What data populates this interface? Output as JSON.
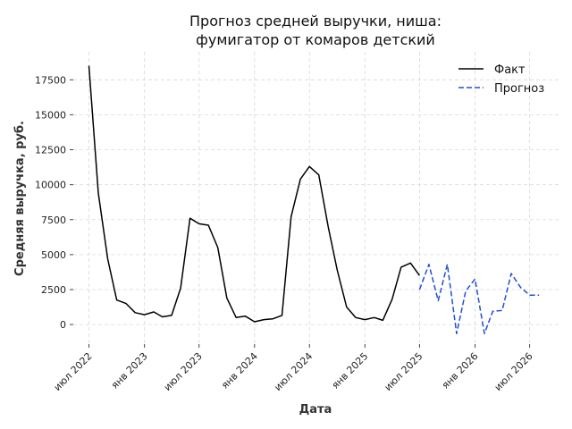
{
  "chart_data": {
    "type": "line",
    "title_line1": "Прогноз средней выручки, ниша:",
    "title_line2": "фумигатор от комаров детский",
    "xlabel": "Дата",
    "ylabel": "Средняя выручка, руб.",
    "ylim": [
      -1400,
      19500
    ],
    "xlim": [
      "2022-05-10",
      "2026-10-05"
    ],
    "y_ticks": [
      0,
      2500,
      5000,
      7500,
      10000,
      12500,
      15000,
      17500
    ],
    "y_tick_labels": [
      "0",
      "2500",
      "5000",
      "7500",
      "10000",
      "12500",
      "15000",
      "17500"
    ],
    "x_ticks": [
      {
        "date": "2022-07-01",
        "label": "июл 2022"
      },
      {
        "date": "2023-01-01",
        "label": "янв 2023"
      },
      {
        "date": "2023-07-01",
        "label": "июл 2023"
      },
      {
        "date": "2024-01-01",
        "label": "янв 2024"
      },
      {
        "date": "2024-07-01",
        "label": "июл 2024"
      },
      {
        "date": "2025-01-01",
        "label": "янв 2025"
      },
      {
        "date": "2025-07-01",
        "label": "июл 2025"
      },
      {
        "date": "2026-01-01",
        "label": "янв 2026"
      },
      {
        "date": "2026-07-01",
        "label": "июл 2026"
      }
    ],
    "grid": true,
    "legend_position": "top-right",
    "series": [
      {
        "name": "Факт",
        "color": "#000000",
        "style": "solid",
        "x": [
          "2022-07-01",
          "2022-08-01",
          "2022-09-01",
          "2022-10-01",
          "2022-11-01",
          "2022-12-01",
          "2023-01-01",
          "2023-02-01",
          "2023-03-01",
          "2023-04-01",
          "2023-05-01",
          "2023-06-01",
          "2023-07-01",
          "2023-08-01",
          "2023-09-01",
          "2023-10-01",
          "2023-11-01",
          "2023-12-01",
          "2024-01-01",
          "2024-02-01",
          "2024-03-01",
          "2024-04-01",
          "2024-05-01",
          "2024-06-01",
          "2024-07-01",
          "2024-08-01",
          "2024-09-01",
          "2024-10-01",
          "2024-11-01",
          "2024-12-01",
          "2025-01-01",
          "2025-02-01",
          "2025-03-01",
          "2025-04-01",
          "2025-05-01",
          "2025-06-01",
          "2025-07-01"
        ],
        "y": [
          18500,
          9400,
          4700,
          1750,
          1500,
          850,
          700,
          900,
          550,
          650,
          2600,
          7600,
          7200,
          7100,
          5500,
          1900,
          500,
          600,
          200,
          350,
          400,
          650,
          7700,
          10400,
          11300,
          10700,
          7000,
          3900,
          1250,
          500,
          350,
          500,
          300,
          1800,
          4100,
          4400,
          3500
        ]
      },
      {
        "name": "Прогноз",
        "color": "#1f4fd6",
        "style": "dashed",
        "x": [
          "2025-07-01",
          "2025-08-01",
          "2025-09-01",
          "2025-10-01",
          "2025-11-01",
          "2025-12-01",
          "2026-01-01",
          "2026-02-01",
          "2026-03-01",
          "2026-04-01",
          "2026-05-01",
          "2026-06-01",
          "2026-07-01",
          "2026-08-01"
        ],
        "y": [
          2500,
          4300,
          1700,
          4300,
          -650,
          2400,
          3250,
          -650,
          950,
          1000,
          3650,
          2650,
          2100,
          2100
        ]
      }
    ]
  }
}
